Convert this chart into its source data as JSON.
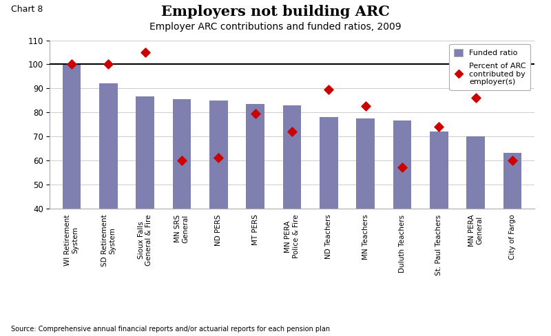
{
  "title": "Employers not building ARC",
  "subtitle": "Employer ARC contributions and funded ratios, 2009",
  "chart_label": "Chart 8",
  "source_text": "Source: Comprehensive annual financial reports and/or actuarial reports for each pension plan",
  "categories": [
    "WI Retirement\nSystem",
    "SD Retirement\nSystem",
    "Sioux Falls\nGeneral & Fire",
    "MN SRS\nGeneral",
    "ND PERS",
    "MT PERS",
    "MN PERA\nPolice & Fire",
    "ND Teachers",
    "MN Teachers",
    "Duluth Teachers",
    "St. Paul Teachers",
    "MN PERA\nGeneral",
    "City of Fargo"
  ],
  "funded_ratio": [
    100,
    92,
    86.5,
    85.5,
    85,
    83.5,
    83,
    78,
    77.5,
    76.5,
    72,
    70,
    63
  ],
  "arc_percent": [
    100,
    100,
    105,
    60,
    61,
    79.5,
    72,
    89.5,
    82.5,
    57,
    74,
    86,
    60
  ],
  "bar_color": "#8080b0",
  "diamond_color": "#cc0000",
  "ref_line_y": 100,
  "ylim": [
    40,
    110
  ],
  "yticks": [
    40,
    50,
    60,
    70,
    80,
    90,
    100,
    110
  ],
  "legend_funded_label": "Funded ratio",
  "legend_arc_label": "Percent of ARC\ncontributed by\nemployer(s)",
  "title_fontsize": 15,
  "subtitle_fontsize": 10,
  "chart_label_fontsize": 9,
  "tick_fontsize": 8.5,
  "xtick_fontsize": 7.5,
  "source_fontsize": 7
}
